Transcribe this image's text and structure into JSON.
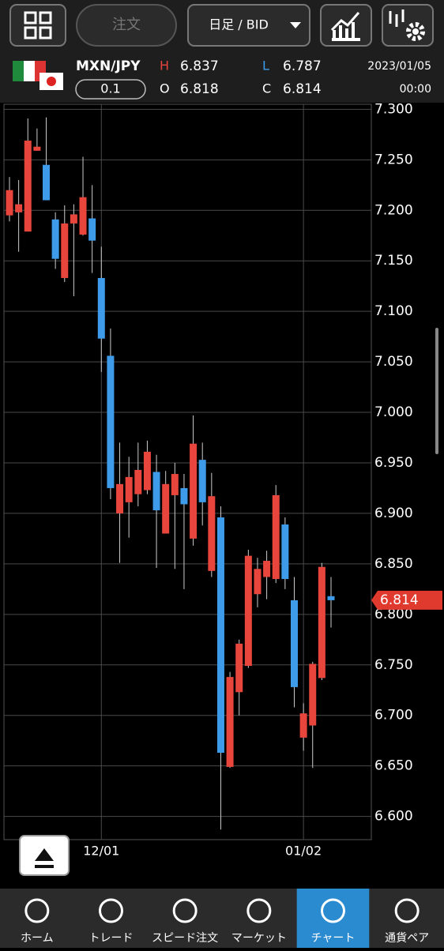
{
  "toolbar": {
    "order_button": "注文",
    "timeframe": "日足 / BID"
  },
  "quote": {
    "pair": "MXN/JPY",
    "lot": "0.1",
    "high_label": "H",
    "high": "6.837",
    "open_label": "O",
    "open": "6.818",
    "low_label": "L",
    "low": "6.787",
    "close_label": "C",
    "close": "6.814",
    "date": "2023/01/05",
    "time": "00:00"
  },
  "chart_data": {
    "type": "candlestick",
    "categories": [
      null,
      null,
      null,
      null,
      null,
      null,
      null,
      null,
      null,
      null,
      "12/01",
      null,
      null,
      null,
      null,
      null,
      null,
      null,
      null,
      null,
      null,
      null,
      null,
      null,
      null,
      null,
      null,
      null,
      null,
      null,
      null,
      null,
      "01/02",
      null,
      null,
      null
    ],
    "open": [
      7.195,
      7.198,
      7.179,
      7.259,
      7.245,
      7.191,
      7.133,
      7.187,
      7.176,
      7.192,
      7.133,
      7.056,
      6.9,
      6.911,
      6.919,
      6.923,
      6.941,
      6.88,
      6.918,
      6.925,
      6.875,
      6.953,
      6.843,
      6.896,
      6.649,
      6.723,
      6.749,
      6.82,
      6.837,
      6.835,
      6.889,
      6.814,
      6.678,
      6.69,
      6.737,
      6.818
    ],
    "high": [
      7.233,
      7.23,
      7.291,
      7.281,
      7.292,
      7.198,
      7.205,
      7.206,
      7.253,
      7.225,
      7.164,
      7.083,
      6.97,
      6.956,
      6.97,
      6.972,
      6.958,
      6.942,
      6.95,
      6.939,
      6.997,
      6.97,
      6.94,
      6.907,
      6.743,
      6.775,
      6.864,
      6.856,
      6.863,
      6.928,
      6.896,
      6.837,
      6.712,
      6.753,
      6.851,
      6.837
    ],
    "low": [
      7.189,
      7.159,
      7.179,
      7.259,
      7.21,
      7.142,
      7.129,
      7.115,
      7.175,
      7.138,
      7.04,
      6.914,
      6.851,
      6.876,
      6.907,
      6.919,
      6.846,
      6.88,
      6.845,
      6.825,
      6.868,
      6.888,
      6.837,
      6.587,
      6.648,
      6.7,
      6.747,
      6.807,
      6.815,
      6.831,
      6.825,
      6.708,
      6.665,
      6.648,
      6.735,
      6.787
    ],
    "close": [
      7.22,
      7.206,
      7.269,
      7.263,
      7.21,
      7.152,
      7.187,
      7.196,
      7.213,
      7.17,
      7.073,
      6.925,
      6.929,
      6.936,
      6.943,
      6.961,
      6.903,
      6.929,
      6.939,
      6.909,
      6.969,
      6.911,
      6.917,
      6.663,
      6.738,
      6.771,
      6.858,
      6.845,
      6.853,
      6.918,
      6.835,
      6.728,
      6.702,
      6.751,
      6.847,
      6.814
    ],
    "up_color": "#e8453c",
    "down_color": "#3d9be9",
    "ylim": [
      6.577,
      7.305
    ],
    "yticks": [
      {
        "value": 7.3,
        "label": "7.300"
      },
      {
        "value": 7.25,
        "label": "7.250"
      },
      {
        "value": 7.2,
        "label": "7.200"
      },
      {
        "value": 7.15,
        "label": "7.150"
      },
      {
        "value": 7.1,
        "label": "7.100"
      },
      {
        "value": 7.05,
        "label": "7.050"
      },
      {
        "value": 7.0,
        "label": "7.000"
      },
      {
        "value": 6.95,
        "label": "6.950"
      },
      {
        "value": 6.9,
        "label": "6.900"
      },
      {
        "value": 6.85,
        "label": "6.850"
      },
      {
        "value": 6.8,
        "label": "6.800"
      },
      {
        "value": 6.75,
        "label": "6.750"
      },
      {
        "value": 6.7,
        "label": "6.700"
      },
      {
        "value": 6.65,
        "label": "6.650"
      },
      {
        "value": 6.6,
        "label": "6.600"
      }
    ],
    "current_price": 6.814,
    "grid": true
  },
  "nav": {
    "items": [
      "ホーム",
      "トレード",
      "スピード注文",
      "マーケット",
      "チャート",
      "通貨ペア"
    ]
  }
}
